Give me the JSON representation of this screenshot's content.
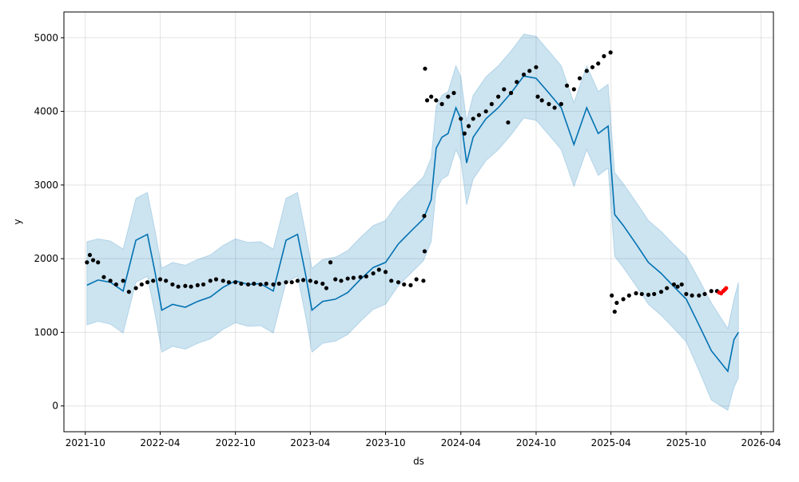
{
  "chart_data": {
    "type": "line",
    "title": "",
    "xlabel": "ds",
    "ylabel": "y",
    "xlim": [
      "2021-08-10",
      "2026-05-01"
    ],
    "ylim": [
      -350,
      5350
    ],
    "grid": true,
    "x_ticks": [
      "2021-10",
      "2022-04",
      "2022-10",
      "2023-04",
      "2023-10",
      "2024-04",
      "2024-10",
      "2025-04",
      "2025-10",
      "2026-04"
    ],
    "y_ticks": [
      0,
      1000,
      2000,
      3000,
      4000,
      5000
    ],
    "colors": {
      "forecast": "#0072B2",
      "band": "#0072B2",
      "actual": "#000000",
      "recent": "#ff0000"
    },
    "forecast_columns": [
      "ds",
      "yhat",
      "yhat_lower",
      "yhat_upper"
    ],
    "forecast": [
      [
        "2021-10-05",
        1640,
        1100,
        2230
      ],
      [
        "2021-11-01",
        1710,
        1150,
        2270
      ],
      [
        "2021-12-01",
        1680,
        1110,
        2240
      ],
      [
        "2022-01-01",
        1560,
        990,
        2130
      ],
      [
        "2022-02-01",
        2250,
        1680,
        2820
      ],
      [
        "2022-03-01",
        2330,
        1760,
        2900
      ],
      [
        "2022-03-20",
        1800,
        1230,
        2370
      ],
      [
        "2022-04-05",
        1300,
        730,
        1870
      ],
      [
        "2022-05-01",
        1380,
        810,
        1950
      ],
      [
        "2022-06-01",
        1340,
        770,
        1910
      ],
      [
        "2022-07-01",
        1420,
        850,
        1990
      ],
      [
        "2022-08-01",
        1480,
        910,
        2050
      ],
      [
        "2022-09-01",
        1610,
        1040,
        2180
      ],
      [
        "2022-10-01",
        1700,
        1130,
        2270
      ],
      [
        "2022-11-01",
        1650,
        1080,
        2220
      ],
      [
        "2022-12-01",
        1660,
        1090,
        2230
      ],
      [
        "2023-01-01",
        1560,
        990,
        2130
      ],
      [
        "2023-02-01",
        2250,
        1680,
        2820
      ],
      [
        "2023-03-01",
        2330,
        1760,
        2900
      ],
      [
        "2023-03-20",
        1800,
        1230,
        2370
      ],
      [
        "2023-04-05",
        1300,
        730,
        1870
      ],
      [
        "2023-05-01",
        1420,
        850,
        1990
      ],
      [
        "2023-06-01",
        1450,
        880,
        2020
      ],
      [
        "2023-07-01",
        1540,
        970,
        2110
      ],
      [
        "2023-08-01",
        1720,
        1150,
        2290
      ],
      [
        "2023-09-01",
        1880,
        1310,
        2450
      ],
      [
        "2023-10-01",
        1950,
        1380,
        2520
      ],
      [
        "2023-11-01",
        2200,
        1630,
        2770
      ],
      [
        "2023-12-01",
        2370,
        1800,
        2940
      ],
      [
        "2024-01-01",
        2540,
        1970,
        3110
      ],
      [
        "2024-01-20",
        2800,
        2230,
        3370
      ],
      [
        "2024-02-01",
        3500,
        2930,
        4070
      ],
      [
        "2024-02-15",
        3650,
        3080,
        4220
      ],
      [
        "2024-03-01",
        3700,
        3130,
        4270
      ],
      [
        "2024-03-20",
        4050,
        3480,
        4620
      ],
      [
        "2024-04-01",
        3900,
        3330,
        4470
      ],
      [
        "2024-04-15",
        3300,
        2730,
        3870
      ],
      [
        "2024-05-01",
        3650,
        3080,
        4220
      ],
      [
        "2024-06-01",
        3900,
        3330,
        4470
      ],
      [
        "2024-07-01",
        4050,
        3480,
        4620
      ],
      [
        "2024-08-01",
        4250,
        3680,
        4820
      ],
      [
        "2024-09-01",
        4480,
        3910,
        5050
      ],
      [
        "2024-10-01",
        4450,
        3880,
        5020
      ],
      [
        "2024-11-01",
        4250,
        3680,
        4820
      ],
      [
        "2024-12-01",
        4050,
        3480,
        4620
      ],
      [
        "2025-01-01",
        3550,
        2980,
        4120
      ],
      [
        "2025-02-01",
        4050,
        3480,
        4620
      ],
      [
        "2025-03-01",
        3700,
        3130,
        4270
      ],
      [
        "2025-03-25",
        3800,
        3230,
        4370
      ],
      [
        "2025-04-10",
        2600,
        2030,
        3170
      ],
      [
        "2025-05-01",
        2450,
        1880,
        3020
      ],
      [
        "2025-06-01",
        2200,
        1630,
        2770
      ],
      [
        "2025-07-01",
        1950,
        1380,
        2520
      ],
      [
        "2025-08-01",
        1800,
        1230,
        2370
      ],
      [
        "2025-09-01",
        1620,
        1050,
        2190
      ],
      [
        "2025-10-01",
        1450,
        870,
        2030
      ],
      [
        "2025-11-01",
        1100,
        480,
        1720
      ],
      [
        "2025-12-01",
        750,
        80,
        1400
      ],
      [
        "2026-01-10",
        470,
        -60,
        1050
      ],
      [
        "2026-01-25",
        900,
        250,
        1450
      ],
      [
        "2026-02-05",
        1000,
        380,
        1680
      ]
    ],
    "actual": [
      [
        "2021-10-05",
        1950
      ],
      [
        "2021-10-12",
        2050
      ],
      [
        "2021-10-20",
        1980
      ],
      [
        "2021-11-01",
        1950
      ],
      [
        "2021-11-15",
        1750
      ],
      [
        "2021-12-01",
        1700
      ],
      [
        "2021-12-15",
        1650
      ],
      [
        "2022-01-01",
        1700
      ],
      [
        "2022-01-15",
        1550
      ],
      [
        "2022-02-01",
        1600
      ],
      [
        "2022-02-15",
        1650
      ],
      [
        "2022-03-01",
        1680
      ],
      [
        "2022-03-15",
        1700
      ],
      [
        "2022-04-01",
        1720
      ],
      [
        "2022-04-15",
        1700
      ],
      [
        "2022-05-01",
        1650
      ],
      [
        "2022-05-15",
        1620
      ],
      [
        "2022-06-01",
        1630
      ],
      [
        "2022-06-15",
        1620
      ],
      [
        "2022-07-01",
        1640
      ],
      [
        "2022-07-15",
        1650
      ],
      [
        "2022-08-01",
        1700
      ],
      [
        "2022-08-15",
        1720
      ],
      [
        "2022-09-01",
        1700
      ],
      [
        "2022-09-15",
        1680
      ],
      [
        "2022-10-01",
        1680
      ],
      [
        "2022-10-15",
        1660
      ],
      [
        "2022-11-01",
        1650
      ],
      [
        "2022-11-15",
        1660
      ],
      [
        "2022-12-01",
        1650
      ],
      [
        "2022-12-15",
        1660
      ],
      [
        "2023-01-01",
        1650
      ],
      [
        "2023-01-15",
        1660
      ],
      [
        "2023-02-01",
        1680
      ],
      [
        "2023-02-15",
        1680
      ],
      [
        "2023-03-01",
        1700
      ],
      [
        "2023-03-15",
        1710
      ],
      [
        "2023-04-01",
        1700
      ],
      [
        "2023-04-15",
        1680
      ],
      [
        "2023-05-01",
        1660
      ],
      [
        "2023-05-10",
        1600
      ],
      [
        "2023-05-20",
        1950
      ],
      [
        "2023-06-01",
        1720
      ],
      [
        "2023-06-15",
        1700
      ],
      [
        "2023-07-01",
        1730
      ],
      [
        "2023-07-15",
        1740
      ],
      [
        "2023-08-01",
        1750
      ],
      [
        "2023-08-15",
        1760
      ],
      [
        "2023-09-01",
        1800
      ],
      [
        "2023-09-15",
        1850
      ],
      [
        "2023-10-01",
        1820
      ],
      [
        "2023-10-15",
        1700
      ],
      [
        "2023-11-01",
        1680
      ],
      [
        "2023-11-15",
        1650
      ],
      [
        "2023-12-01",
        1640
      ],
      [
        "2023-12-15",
        1720
      ],
      [
        "2024-01-01",
        1700
      ],
      [
        "2024-01-03",
        2580
      ],
      [
        "2024-01-04",
        2100
      ],
      [
        "2024-01-05",
        4580
      ],
      [
        "2024-01-10",
        4150
      ],
      [
        "2024-01-20",
        4200
      ],
      [
        "2024-02-01",
        4150
      ],
      [
        "2024-02-15",
        4100
      ],
      [
        "2024-03-01",
        4200
      ],
      [
        "2024-03-15",
        4250
      ],
      [
        "2024-04-01",
        3900
      ],
      [
        "2024-04-10",
        3700
      ],
      [
        "2024-04-20",
        3800
      ],
      [
        "2024-05-01",
        3900
      ],
      [
        "2024-05-15",
        3950
      ],
      [
        "2024-06-01",
        4000
      ],
      [
        "2024-06-15",
        4100
      ],
      [
        "2024-07-01",
        4200
      ],
      [
        "2024-07-15",
        4300
      ],
      [
        "2024-07-25",
        3850
      ],
      [
        "2024-08-01",
        4250
      ],
      [
        "2024-08-15",
        4400
      ],
      [
        "2024-09-01",
        4500
      ],
      [
        "2024-09-15",
        4550
      ],
      [
        "2024-10-01",
        4600
      ],
      [
        "2024-10-05",
        4200
      ],
      [
        "2024-10-15",
        4150
      ],
      [
        "2024-11-01",
        4100
      ],
      [
        "2024-11-15",
        4050
      ],
      [
        "2024-12-01",
        4100
      ],
      [
        "2024-12-15",
        4350
      ],
      [
        "2025-01-01",
        4300
      ],
      [
        "2025-01-15",
        4450
      ],
      [
        "2025-02-01",
        4550
      ],
      [
        "2025-02-15",
        4600
      ],
      [
        "2025-03-01",
        4650
      ],
      [
        "2025-03-15",
        4750
      ],
      [
        "2025-03-31",
        4800
      ],
      [
        "2025-04-03",
        1500
      ],
      [
        "2025-04-10",
        1280
      ],
      [
        "2025-04-15",
        1400
      ],
      [
        "2025-05-01",
        1450
      ],
      [
        "2025-05-15",
        1500
      ],
      [
        "2025-06-01",
        1530
      ],
      [
        "2025-06-15",
        1520
      ],
      [
        "2025-07-01",
        1510
      ],
      [
        "2025-07-15",
        1520
      ],
      [
        "2025-08-01",
        1550
      ],
      [
        "2025-08-15",
        1600
      ],
      [
        "2025-09-01",
        1650
      ],
      [
        "2025-09-10",
        1620
      ],
      [
        "2025-09-20",
        1650
      ],
      [
        "2025-10-01",
        1520
      ],
      [
        "2025-10-15",
        1500
      ],
      [
        "2025-11-01",
        1500
      ],
      [
        "2025-11-15",
        1520
      ],
      [
        "2025-12-01",
        1560
      ],
      [
        "2025-12-15",
        1560
      ]
    ],
    "recent_actual": [
      [
        "2025-12-20",
        1540
      ],
      [
        "2025-12-25",
        1530
      ],
      [
        "2025-12-30",
        1560
      ],
      [
        "2026-01-03",
        1580
      ],
      [
        "2026-01-06",
        1600
      ]
    ]
  }
}
